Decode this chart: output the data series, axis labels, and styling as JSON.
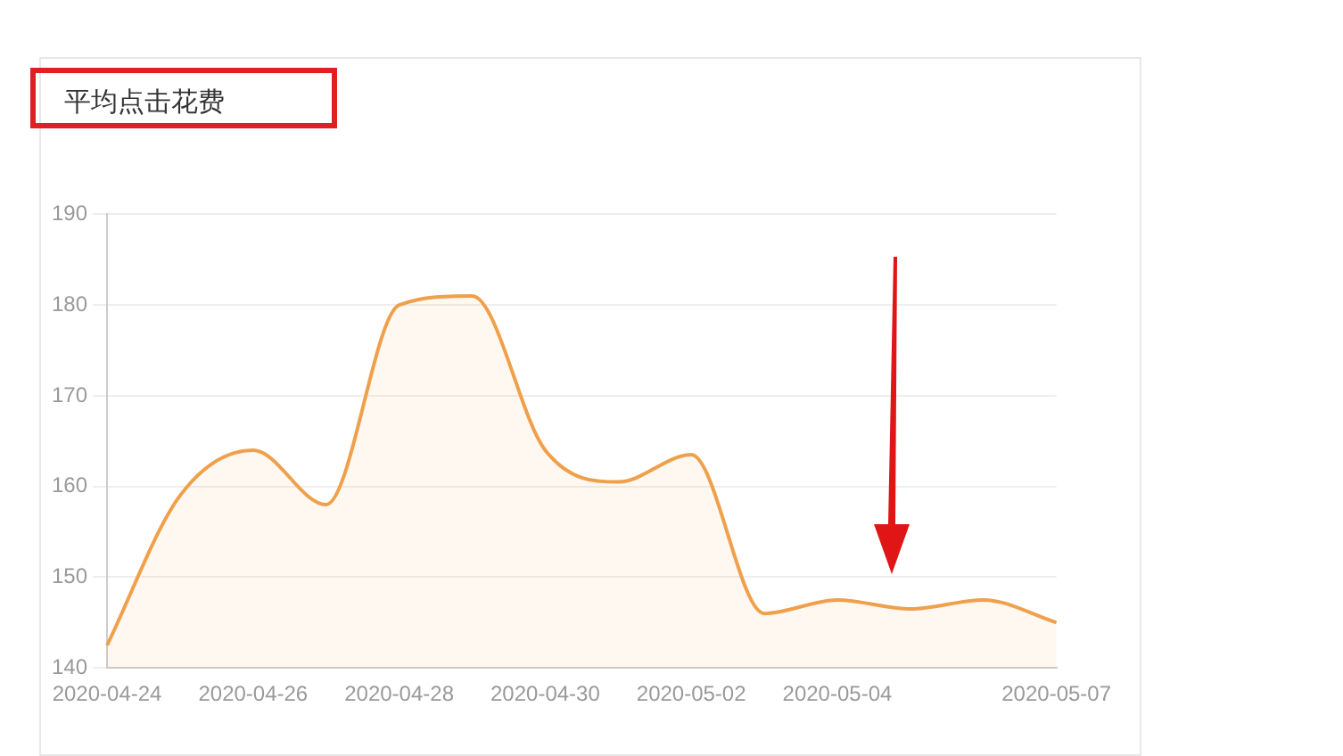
{
  "chart_data": {
    "type": "area",
    "title": "平均点击花费",
    "categories": [
      "2020-04-24",
      null,
      "2020-04-26",
      null,
      "2020-04-28",
      null,
      "2020-04-30",
      null,
      "2020-05-02",
      null,
      "2020-05-04",
      null,
      null,
      "2020-05-07"
    ],
    "series": [
      {
        "color": "#f0a04b",
        "values": [
          142.5,
          159,
          164,
          158,
          180,
          181,
          164,
          160.5,
          163.5,
          146,
          147.5,
          146.5,
          147.5,
          145
        ]
      }
    ],
    "ylim": [
      140,
      190
    ],
    "yticks": [
      140,
      150,
      160,
      170,
      180,
      190
    ],
    "grid": "y",
    "legend": false
  }
}
